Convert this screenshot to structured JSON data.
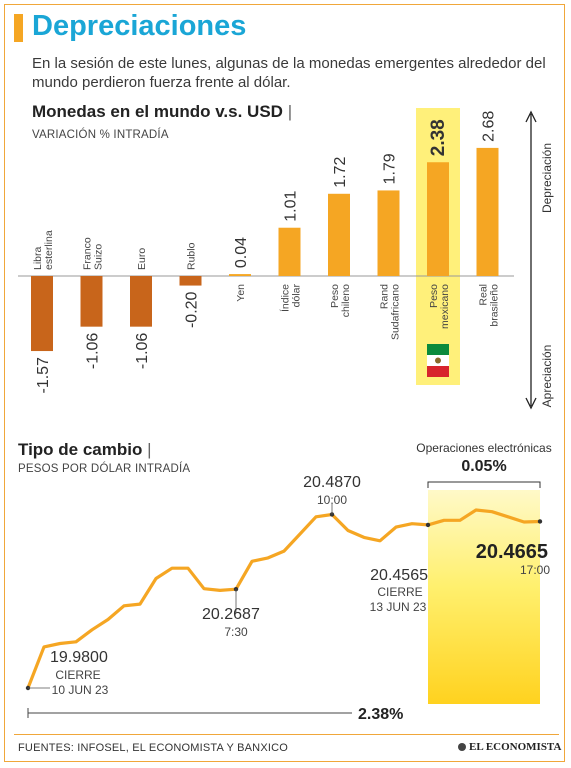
{
  "header": {
    "title": "Depreciaciones",
    "subtitle": "En la sesión de este lunes, algunas de la monedas emergentes alrededor del mundo perdieron fuerza frente al dólar."
  },
  "section1": {
    "title": "Monedas en el mundo v.s. USD",
    "subtitle": "VARIACIÓN % INTRADÍA",
    "arrow_top_label": "Depreciación",
    "arrow_bottom_label": "Apreciación"
  },
  "section2": {
    "title": "Tipo de cambio",
    "subtitle": "PESOS POR DÓLAR INTRADÍA",
    "electronic_label": "Operaciones electrónicas",
    "electronic_pct": "0.05%",
    "total_pct": "2.38%"
  },
  "footer": {
    "sources": "FUENTES: INFOSEL, EL ECONOMISTA Y BANXICO",
    "brand": "EL ECONOMISTA"
  },
  "colors": {
    "title": "#1aa6d6",
    "bar_negative": "#c8651b",
    "bar_positive": "#f5a623",
    "highlight": "#fff07a",
    "line": "#f5a623"
  },
  "chart_data": [
    {
      "type": "bar",
      "categories": [
        [
          "Libra",
          "esterlina"
        ],
        [
          "Franco",
          "Suizo"
        ],
        [
          "Euro"
        ],
        [
          "Rublo"
        ],
        [
          "Yen"
        ],
        [
          "Índice",
          "dólar"
        ],
        [
          "Peso",
          "chileno"
        ],
        [
          "Rand",
          "Sudafricano"
        ],
        [
          "Peso",
          "mexicano"
        ],
        [
          "Real",
          "brasileño"
        ]
      ],
      "values": [
        -1.57,
        -1.06,
        -1.06,
        -0.2,
        0.04,
        1.01,
        1.72,
        1.79,
        2.38,
        2.68
      ],
      "value_labels": [
        "-1.57",
        "-1.06",
        "-1.06",
        "-0.20",
        "0.04",
        "1.01",
        "1.72",
        "1.79",
        "2.38",
        "2.68"
      ],
      "highlight_category": "Peso mexicano"
    },
    {
      "type": "line",
      "series": [
        {
          "values": [
            19.98,
            20.1,
            20.11,
            20.115,
            20.15,
            20.18,
            20.22,
            20.225,
            20.3,
            20.33,
            20.33,
            20.27,
            20.265,
            20.2687,
            20.35,
            20.36,
            20.38,
            20.43,
            20.48,
            20.487,
            20.44,
            20.42,
            20.41,
            20.45,
            20.46,
            20.4565,
            20.47,
            20.47,
            20.5,
            20.495,
            20.48,
            20.465,
            20.4665
          ]
        }
      ],
      "annotations": [
        {
          "value": "19.9800",
          "label": "CIERRE",
          "date": "10 JUN 23"
        },
        {
          "value": "20.2687",
          "time": "7:30"
        },
        {
          "value": "20.4870",
          "time": "10:00"
        },
        {
          "value": "20.4565",
          "label": "CIERRE",
          "date": "13 JUN 23"
        },
        {
          "value": "20.4665",
          "time": "17:00"
        }
      ]
    }
  ]
}
